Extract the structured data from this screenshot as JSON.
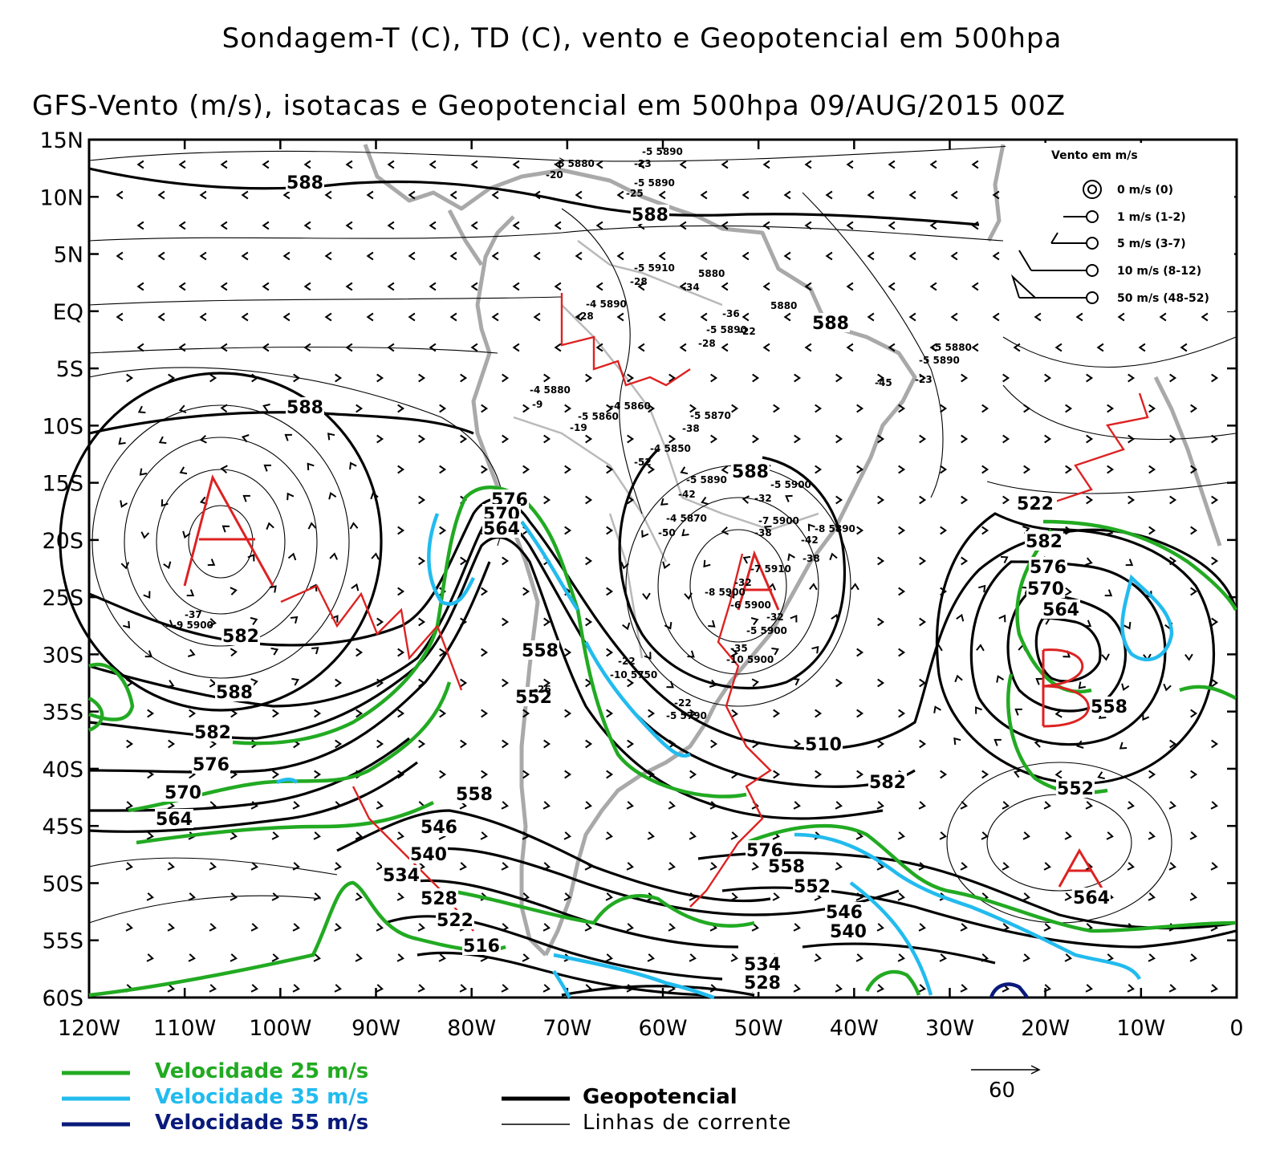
{
  "titles": {
    "line1": "Sondagem-T (C), TD (C), vento e Geopotencial em 500hpa",
    "line2": "GFS-Vento (m/s), isotacas e Geopotencial em 500hpa 09/AUG/2015 00Z"
  },
  "axes": {
    "lat_labels": [
      "15N",
      "10N",
      "5N",
      "EQ",
      "5S",
      "10S",
      "15S",
      "20S",
      "25S",
      "30S",
      "35S",
      "40S",
      "45S",
      "50S",
      "55S",
      "60S"
    ],
    "lon_labels": [
      "120W",
      "110W",
      "100W",
      "90W",
      "80W",
      "70W",
      "60W",
      "50W",
      "40W",
      "30W",
      "20W",
      "10W",
      "0"
    ]
  },
  "wind_legend": {
    "title": "Vento em m/s",
    "items": [
      "0 m/s (0)",
      "1 m/s (1-2)",
      "5 m/s (3-7)",
      "10 m/s (8-12)",
      "50 m/s (48-52)"
    ]
  },
  "vector_scale": "60",
  "isotach_legend": [
    {
      "label": "Velocidade 25 m/s",
      "color": "#22aa22"
    },
    {
      "label": "Velocidade 35 m/s",
      "color": "#22bbee"
    },
    {
      "label": "Velocidade 55 m/s",
      "color": "#0a1a7a"
    }
  ],
  "line_legend": {
    "geopotencial": "Geopotencial",
    "linhas": "Linhas de corrente"
  },
  "colors": {
    "trough_axis": "#dd2222",
    "coast": "#a9a9a9",
    "jet25": "#22aa22",
    "jet35": "#22bbee",
    "jet55": "#0a1a7a"
  },
  "systems": [
    "A",
    "A",
    "A",
    "B"
  ],
  "height_labels": [
    "588",
    "588",
    "588",
    "588",
    "588",
    "582",
    "576",
    "570",
    "564",
    "558",
    "552",
    "582",
    "588",
    "582",
    "576",
    "570",
    "564",
    "558",
    "546",
    "540",
    "534",
    "528",
    "522",
    "516",
    "510",
    "582",
    "576",
    "558",
    "552",
    "546",
    "540",
    "534",
    "528",
    "522",
    "582",
    "576",
    "570",
    "564",
    "558",
    "552",
    "564",
    "570"
  ],
  "station_labels": [
    "-6 5880",
    "-20",
    "-5 5890",
    "-23",
    "-5 5890",
    "-25",
    "-5 5910",
    "-28",
    "-34",
    "5880",
    "-4 5890",
    "-28",
    "-5 5890",
    "-22",
    "-28",
    "-36",
    "5880",
    "-4 5880",
    "-9",
    "-4 5860",
    "-5 5860",
    "-19",
    "-5 5870",
    "-38",
    "-4 5850",
    "-52",
    "-5 5890",
    "-42",
    "-5 5900",
    "-32",
    "-4 5870",
    "-50",
    "-7 5900",
    "-38",
    "-42",
    "-8 5890",
    "-38",
    "-7 5910",
    "-32",
    "-8 5900",
    "-6 5900",
    "-32",
    "-5 5900",
    "-35",
    "-10 5900",
    "-22",
    "-10 5750",
    "-26",
    "-22",
    "-5 5790",
    "-23",
    "-5 5880",
    "-5 5890",
    "-45",
    "-37",
    "-9 5900",
    "-4"
  ]
}
